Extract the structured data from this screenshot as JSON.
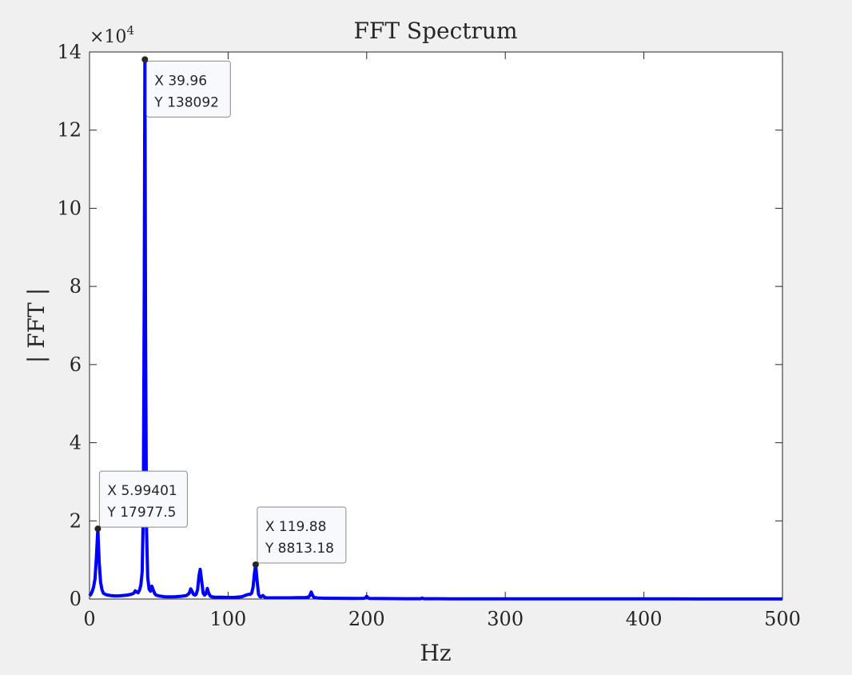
{
  "chart_data": {
    "type": "line",
    "title": "FFT Spectrum",
    "xlabel": "Hz",
    "ylabel": "| FFT |",
    "y_exponent_label": "×10",
    "y_exponent_power": "4",
    "xlim": [
      0,
      500
    ],
    "ylim": [
      0,
      140000
    ],
    "xticks": [
      0,
      100,
      200,
      300,
      400,
      500
    ],
    "yticks": [
      0,
      20000,
      40000,
      60000,
      80000,
      100000,
      120000,
      140000
    ],
    "ytick_labels": [
      "0",
      "2",
      "4",
      "6",
      "8",
      "10",
      "12",
      "14"
    ],
    "xtick_labels": [
      "0",
      "100",
      "200",
      "300",
      "400",
      "500"
    ],
    "grid": false,
    "series": [
      {
        "color": "#0000ff",
        "x": [
          0,
          1,
          2,
          3,
          4,
          5,
          5.99401,
          7,
          8,
          9,
          10,
          12,
          15,
          18,
          21,
          24,
          27,
          30,
          32,
          33,
          34,
          35,
          36,
          37,
          38,
          38.8,
          39.5,
          39.96,
          40.4,
          41.1,
          42,
          43,
          44,
          45,
          46,
          47,
          48,
          50,
          54,
          58,
          62,
          66,
          70,
          72,
          73,
          74,
          75,
          76,
          77,
          78,
          79,
          79.9,
          80.8,
          82,
          83,
          84,
          85,
          86,
          87,
          88,
          90,
          95,
          100,
          105,
          110,
          113,
          115,
          116,
          117,
          118,
          119,
          119.88,
          120.8,
          122,
          123,
          124,
          125,
          126,
          127,
          128,
          130,
          135,
          140,
          145,
          150,
          155,
          158,
          159,
          160,
          161,
          162,
          165,
          170,
          180,
          190,
          198,
          199,
          200,
          201,
          202,
          210,
          220,
          230,
          239,
          240,
          241,
          250,
          260,
          280,
          300,
          320,
          340,
          360,
          380,
          400,
          420,
          440,
          460,
          480,
          500
        ],
        "y": [
          800,
          1200,
          2000,
          3200,
          5200,
          11000,
          17977.5,
          9500,
          4200,
          2400,
          1500,
          1100,
          900,
          800,
          800,
          900,
          1000,
          1200,
          1500,
          2100,
          1800,
          1600,
          2200,
          3500,
          7000,
          22000,
          80000,
          138092,
          70000,
          18000,
          5500,
          2500,
          2000,
          3300,
          2300,
          1400,
          1000,
          800,
          600,
          550,
          600,
          700,
          900,
          1500,
          2600,
          2000,
          1200,
          1000,
          1200,
          2500,
          6000,
          7600,
          5000,
          1500,
          1000,
          1400,
          2700,
          1500,
          800,
          600,
          500,
          450,
          400,
          420,
          600,
          1000,
          1200,
          1200,
          1500,
          3000,
          6500,
          8813.18,
          5000,
          1200,
          600,
          600,
          900,
          600,
          350,
          300,
          300,
          300,
          300,
          300,
          350,
          350,
          500,
          900,
          1800,
          900,
          400,
          250,
          200,
          180,
          160,
          180,
          300,
          700,
          300,
          150,
          120,
          100,
          90,
          90,
          250,
          90,
          80,
          70,
          60,
          55,
          50,
          45,
          40,
          38,
          35,
          32,
          30,
          30,
          30,
          30
        ]
      }
    ],
    "datatips": [
      {
        "x": 39.96,
        "y": 138092,
        "x_label": "X",
        "y_label": "Y",
        "x_text": "39.96",
        "y_text": "138092"
      },
      {
        "x": 5.99401,
        "y": 17977.5,
        "x_label": "X",
        "y_label": "Y",
        "x_text": "5.99401",
        "y_text": "17977.5"
      },
      {
        "x": 119.88,
        "y": 8813.18,
        "x_label": "X",
        "y_label": "Y",
        "x_text": "119.88",
        "y_text": "8813.18"
      }
    ]
  }
}
